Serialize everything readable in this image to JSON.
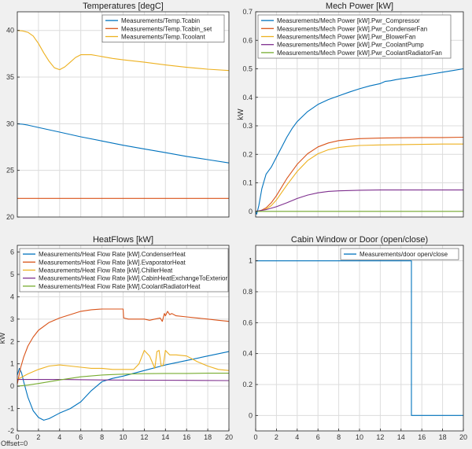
{
  "figure": {
    "offset_label": "Offset=0"
  },
  "colors": {
    "blue": "#0072BD",
    "orange": "#D95319",
    "yellow": "#EDB120",
    "purple": "#7E2F8E",
    "green": "#77AC30",
    "grid": "#dcdcdc",
    "axis_bg": "#ffffff"
  },
  "chart_data": [
    {
      "type": "line",
      "title": "Temperatures [degC]",
      "xlabel": "",
      "ylabel": "",
      "xlim": [
        0,
        20
      ],
      "ylim": [
        20,
        42
      ],
      "xticks": [],
      "yticks": [
        20,
        25,
        30,
        35,
        40
      ],
      "grid": true,
      "legend": "top-right",
      "series": [
        {
          "name": "Measurements/Temp.Tcabin",
          "color": "#0072BD",
          "x": [
            0,
            0.5,
            1,
            2,
            4,
            6,
            8,
            10,
            12,
            14,
            16,
            18,
            20
          ],
          "y": [
            30,
            29.95,
            29.85,
            29.6,
            29.1,
            28.6,
            28.15,
            27.7,
            27.3,
            26.9,
            26.5,
            26.15,
            25.8
          ]
        },
        {
          "name": "Measurements/Temp.Tcabin_set",
          "color": "#D95319",
          "x": [
            0,
            20
          ],
          "y": [
            22,
            22
          ]
        },
        {
          "name": "Measurements/Temp.Tcoolant",
          "color": "#EDB120",
          "x": [
            0,
            0.5,
            1,
            1.5,
            2,
            2.5,
            3,
            3.5,
            4,
            4.5,
            5,
            5.5,
            6,
            7,
            8,
            9,
            10,
            12,
            14,
            16,
            18,
            20
          ],
          "y": [
            40,
            39.95,
            39.8,
            39.4,
            38.6,
            37.6,
            36.7,
            36.0,
            35.8,
            36.1,
            36.6,
            37.1,
            37.4,
            37.4,
            37.2,
            37.0,
            36.85,
            36.6,
            36.3,
            36.05,
            35.85,
            35.7
          ]
        }
      ]
    },
    {
      "type": "line",
      "title": "Mech Power [kW]",
      "xlabel": "",
      "ylabel": "kW",
      "xlim": [
        0,
        20
      ],
      "ylim": [
        -0.02,
        0.7
      ],
      "xticks": [],
      "yticks": [
        0,
        0.1,
        0.2,
        0.3,
        0.4,
        0.5,
        0.6,
        0.7
      ],
      "grid": true,
      "legend": "top-left",
      "series": [
        {
          "name": "Measurements/Mech Power [kW].Pwr_Compressor",
          "color": "#0072BD",
          "x": [
            0,
            0.1,
            0.3,
            0.6,
            1,
            1.5,
            2,
            2.5,
            3,
            3.5,
            4,
            5,
            6,
            7,
            8,
            9,
            10,
            11,
            12,
            12.5,
            13,
            13.5,
            14,
            15,
            16,
            17,
            18,
            19,
            20
          ],
          "y": [
            0,
            -0.01,
            0.02,
            0.08,
            0.13,
            0.155,
            0.19,
            0.225,
            0.26,
            0.29,
            0.315,
            0.35,
            0.375,
            0.392,
            0.405,
            0.418,
            0.43,
            0.44,
            0.448,
            0.456,
            0.458,
            0.462,
            0.465,
            0.47,
            0.476,
            0.482,
            0.488,
            0.494,
            0.5
          ]
        },
        {
          "name": "Measurements/Mech Power [kW].Pwr_CondenserFan",
          "color": "#D95319",
          "x": [
            0,
            0.5,
            1,
            1.5,
            2,
            3,
            4,
            5,
            6,
            7,
            8,
            9,
            10,
            12,
            14,
            16,
            18,
            20
          ],
          "y": [
            0,
            0.003,
            0.012,
            0.03,
            0.055,
            0.115,
            0.165,
            0.202,
            0.226,
            0.24,
            0.248,
            0.252,
            0.255,
            0.257,
            0.258,
            0.259,
            0.259,
            0.26
          ]
        },
        {
          "name": "Measurements/Mech Power [kW].Pwr_BlowerFan",
          "color": "#EDB120",
          "x": [
            0,
            0.5,
            1,
            1.5,
            2,
            3,
            4,
            5,
            6,
            7,
            8,
            9,
            10,
            12,
            14,
            16,
            18,
            20
          ],
          "y": [
            0,
            0.002,
            0.008,
            0.02,
            0.04,
            0.092,
            0.14,
            0.178,
            0.202,
            0.216,
            0.224,
            0.228,
            0.231,
            0.233,
            0.234,
            0.235,
            0.236,
            0.236
          ]
        },
        {
          "name": "Measurements/Mech Power [kW].Pwr_CoolantPump",
          "color": "#7E2F8E",
          "x": [
            0,
            1,
            2,
            3,
            4,
            5,
            6,
            7,
            8,
            10,
            12,
            14,
            16,
            18,
            20
          ],
          "y": [
            0,
            0.006,
            0.016,
            0.03,
            0.045,
            0.057,
            0.065,
            0.07,
            0.072,
            0.074,
            0.075,
            0.075,
            0.075,
            0.075,
            0.075
          ]
        },
        {
          "name": "Measurements/Mech Power [kW].Pwr_CoolantRadiatorFan",
          "color": "#77AC30",
          "x": [
            0,
            20
          ],
          "y": [
            0,
            0
          ]
        }
      ]
    },
    {
      "type": "line",
      "title": "HeatFlows [kW]",
      "xlabel": "",
      "ylabel": "kW",
      "xlim": [
        0,
        20
      ],
      "ylim": [
        -2,
        6.3
      ],
      "xticks": [
        0,
        2,
        4,
        6,
        8,
        10,
        12,
        14,
        16,
        18,
        20
      ],
      "yticks": [
        -2,
        -1,
        0,
        1,
        2,
        3,
        4,
        5,
        6
      ],
      "grid": true,
      "legend": "top-left",
      "series": [
        {
          "name": "Measurements/Heat Flow Rate [kW].CondenserHeat",
          "color": "#0072BD",
          "x": [
            0,
            0.2,
            0.4,
            0.6,
            1,
            1.5,
            2,
            2.5,
            3,
            4,
            5,
            6,
            6.5,
            7,
            8,
            9,
            10,
            12,
            14,
            16,
            18,
            20
          ],
          "y": [
            0.5,
            0.8,
            0.6,
            0.2,
            -0.5,
            -1.1,
            -1.4,
            -1.52,
            -1.45,
            -1.2,
            -1.0,
            -0.7,
            -0.45,
            -0.2,
            0.2,
            0.35,
            0.45,
            0.7,
            0.95,
            1.15,
            1.35,
            1.55
          ]
        },
        {
          "name": "Measurements/Heat Flow Rate [kW].EvaporatorHeat",
          "color": "#D95319",
          "x": [
            0,
            0.3,
            0.6,
            1,
            1.5,
            2,
            3,
            4,
            5,
            6,
            7,
            8,
            9,
            10,
            10.05,
            10.5,
            11,
            12,
            12.5,
            13,
            13.5,
            13.7,
            13.9,
            14,
            14.2,
            14.4,
            14.6,
            15,
            16,
            17,
            18,
            19,
            20
          ],
          "y": [
            0.1,
            0.8,
            1.3,
            1.8,
            2.2,
            2.5,
            2.85,
            3.05,
            3.2,
            3.35,
            3.42,
            3.45,
            3.45,
            3.45,
            3.05,
            3.0,
            3.0,
            3.0,
            2.95,
            3.0,
            3.05,
            2.9,
            3.25,
            3.15,
            3.35,
            3.2,
            3.25,
            3.15,
            3.1,
            3.05,
            3.0,
            2.95,
            2.9
          ]
        },
        {
          "name": "Measurements/Heat Flow Rate [kW].ChillerHeat",
          "color": "#EDB120",
          "x": [
            0,
            1,
            2,
            3,
            4,
            5,
            6,
            7,
            8,
            9,
            10,
            11,
            11.5,
            12,
            12.5,
            13,
            13.2,
            13.4,
            13.6,
            13.8,
            14,
            14.2,
            14.4,
            15,
            16,
            17,
            18,
            19,
            20
          ],
          "y": [
            0.3,
            0.55,
            0.75,
            0.9,
            0.95,
            0.9,
            0.85,
            0.8,
            0.8,
            0.75,
            0.75,
            0.75,
            1.0,
            1.6,
            1.35,
            0.8,
            1.55,
            1.6,
            0.9,
            0.95,
            1.6,
            1.5,
            1.4,
            1.4,
            1.35,
            1.1,
            0.9,
            0.75,
            0.7
          ]
        },
        {
          "name": "Measurements/Heat Flow Rate [kW].CabinHeatExchangeToExterior",
          "color": "#7E2F8E",
          "x": [
            0,
            4,
            8,
            12,
            16,
            20
          ],
          "y": [
            0.3,
            0.3,
            0.28,
            0.27,
            0.26,
            0.25
          ]
        },
        {
          "name": "Measurements/Heat Flow Rate [kW].CoolantRadiatorHeat",
          "color": "#77AC30",
          "x": [
            0,
            1,
            2,
            3,
            4,
            5,
            6,
            7,
            8,
            9,
            10,
            12,
            14,
            16,
            18,
            20
          ],
          "y": [
            0,
            0.05,
            0.12,
            0.2,
            0.28,
            0.35,
            0.42,
            0.46,
            0.5,
            0.52,
            0.54,
            0.56,
            0.57,
            0.57,
            0.58,
            0.58
          ]
        }
      ]
    },
    {
      "type": "line",
      "title": "Cabin Window or Door (open/close)",
      "xlabel": "",
      "ylabel": "",
      "xlim": [
        0,
        20
      ],
      "ylim": [
        -0.1,
        1.1
      ],
      "xticks": [
        0,
        2,
        4,
        6,
        8,
        10,
        12,
        14,
        16,
        18,
        20
      ],
      "yticks": [
        0,
        0.2,
        0.4,
        0.6,
        0.8,
        1
      ],
      "grid": true,
      "legend": "top-right",
      "series": [
        {
          "name": "Measurements/door open/close",
          "color": "#0072BD",
          "x": [
            0,
            15,
            15,
            20
          ],
          "y": [
            1,
            1,
            0,
            0
          ]
        }
      ]
    }
  ]
}
